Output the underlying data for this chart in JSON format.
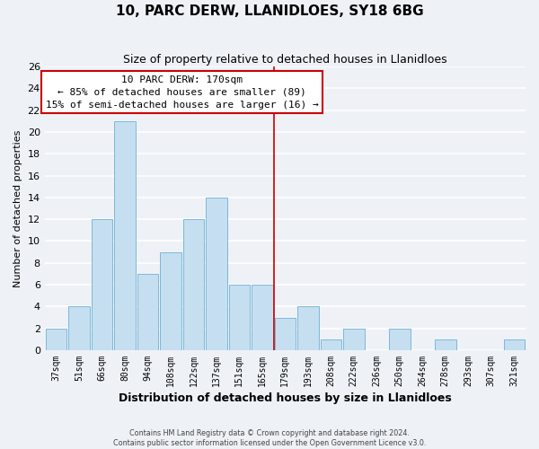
{
  "title": "10, PARC DERW, LLANIDLOES, SY18 6BG",
  "subtitle": "Size of property relative to detached houses in Llanidloes",
  "xlabel": "Distribution of detached houses by size in Llanidloes",
  "ylabel": "Number of detached properties",
  "bar_labels": [
    "37sqm",
    "51sqm",
    "66sqm",
    "80sqm",
    "94sqm",
    "108sqm",
    "122sqm",
    "137sqm",
    "151sqm",
    "165sqm",
    "179sqm",
    "193sqm",
    "208sqm",
    "222sqm",
    "236sqm",
    "250sqm",
    "264sqm",
    "278sqm",
    "293sqm",
    "307sqm",
    "321sqm"
  ],
  "bar_values": [
    2,
    4,
    12,
    21,
    7,
    9,
    12,
    14,
    6,
    6,
    3,
    4,
    1,
    2,
    0,
    2,
    0,
    1,
    0,
    0,
    1
  ],
  "bar_color": "#c5dff0",
  "bar_edge_color": "#7db8d8",
  "ylim": [
    0,
    26
  ],
  "yticks": [
    0,
    2,
    4,
    6,
    8,
    10,
    12,
    14,
    16,
    18,
    20,
    22,
    24,
    26
  ],
  "vline_x": 9.5,
  "vline_color": "#cc0000",
  "annotation_title": "10 PARC DERW: 170sqm",
  "annotation_line1": "← 85% of detached houses are smaller (89)",
  "annotation_line2": "15% of semi-detached houses are larger (16) →",
  "annotation_box_color": "#ffffff",
  "annotation_box_edge": "#cc0000",
  "footer1": "Contains HM Land Registry data © Crown copyright and database right 2024.",
  "footer2": "Contains public sector information licensed under the Open Government Licence v3.0.",
  "background_color": "#eef2f7",
  "grid_color": "#ffffff",
  "plot_bg_color": "#eef2f7"
}
